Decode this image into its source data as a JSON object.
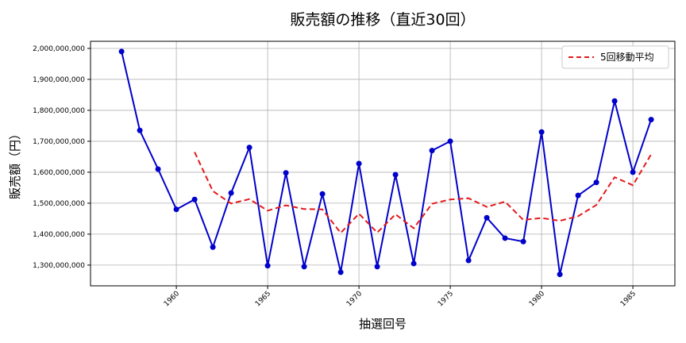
{
  "chart_data": {
    "type": "line",
    "title": "販売額の推移（直近30回）",
    "xlabel": "抽選回号",
    "ylabel": "販売額（円）",
    "xlim": [
      1955.3,
      1987.3
    ],
    "ylim": [
      1233000000,
      2023000000
    ],
    "x_ticks": [
      1960,
      1965,
      1970,
      1975,
      1980,
      1985
    ],
    "x_tick_labels": [
      "1960",
      "1965",
      "1970",
      "1975",
      "1980",
      "1985"
    ],
    "y_ticks": [
      1300000000,
      1400000000,
      1500000000,
      1600000000,
      1700000000,
      1800000000,
      1900000000,
      2000000000
    ],
    "y_tick_labels": [
      "1,300,000,000",
      "1,400,000,000",
      "1,500,000,000",
      "1,600,000,000",
      "1,700,000,000",
      "1,800,000,000",
      "1,900,000,000",
      "2,000,000,000"
    ],
    "grid": true,
    "legend_position": "top-right",
    "x": [
      1957,
      1958,
      1959,
      1960,
      1961,
      1962,
      1963,
      1964,
      1965,
      1966,
      1967,
      1968,
      1969,
      1970,
      1971,
      1972,
      1973,
      1974,
      1975,
      1976,
      1977,
      1978,
      1979,
      1980,
      1981,
      1982,
      1983,
      1984,
      1985,
      1986
    ],
    "series": [
      {
        "style": "solid-markers",
        "color": "#0000cc",
        "values": [
          1990000000,
          1735000000,
          1610000000,
          1480000000,
          1512000000,
          1358000000,
          1533000000,
          1680000000,
          1298000000,
          1598000000,
          1295000000,
          1530000000,
          1277000000,
          1628000000,
          1295000000,
          1592000000,
          1305000000,
          1670000000,
          1700000000,
          1315000000,
          1453000000,
          1387000000,
          1376000000,
          1730000000,
          1270000000,
          1525000000,
          1567000000,
          1830000000,
          1600000000,
          1770000000
        ]
      },
      {
        "name": "5回移動平均",
        "style": "dashed",
        "color": "#e31a1c",
        "values": [
          null,
          null,
          null,
          null,
          1665000000,
          1539000000,
          1499000000,
          1513000000,
          1476000000,
          1493000000,
          1481000000,
          1480000000,
          1404000000,
          1466000000,
          1405000000,
          1464000000,
          1419000000,
          1498000000,
          1512000000,
          1516000000,
          1488000000,
          1505000000,
          1446000000,
          1452000000,
          1443000000,
          1458000000,
          1494000000,
          1584000000,
          1558000000,
          1658000000
        ]
      }
    ]
  }
}
